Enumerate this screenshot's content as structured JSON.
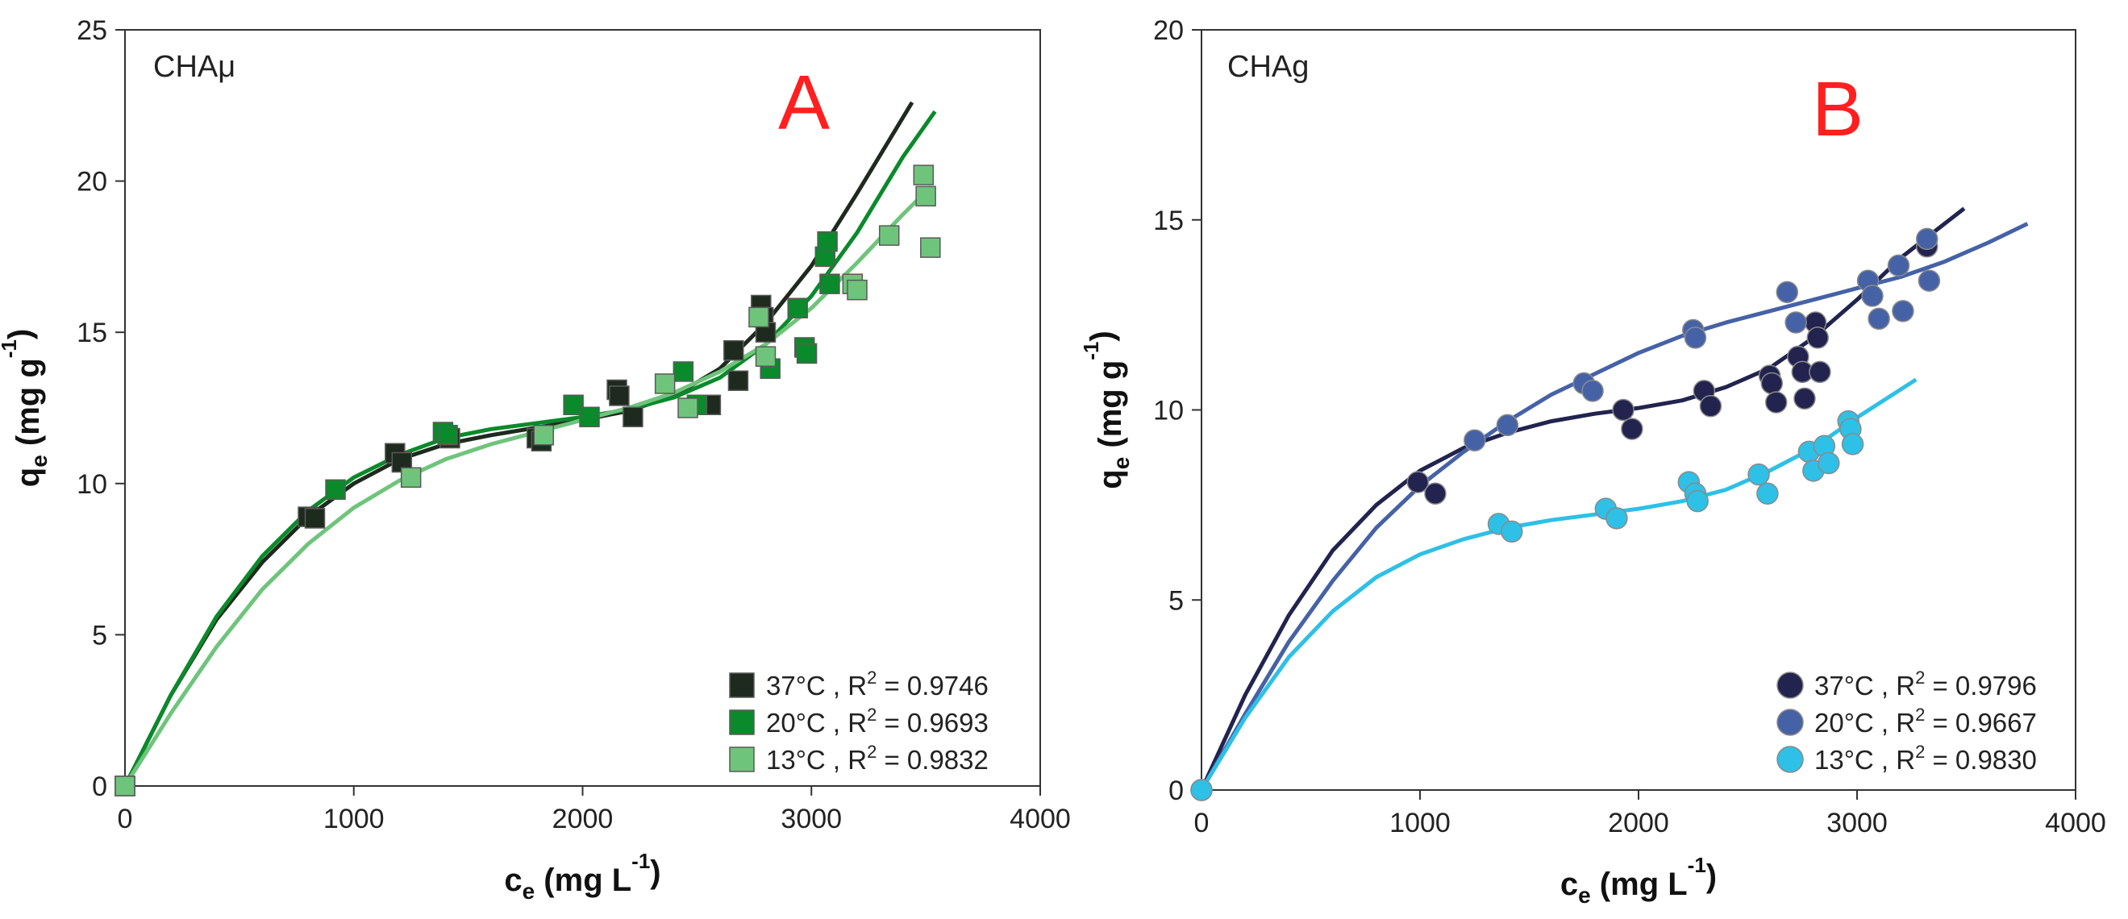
{
  "chart_data": [
    {
      "type": "scatter",
      "panel_name": "CHAμ",
      "panel_letter": "A",
      "letter_color": "#ff1f1f",
      "xlabel": {
        "main": "c",
        "sub": "e",
        "rest": " (mg L",
        "sup": "-1",
        "end": ")"
      },
      "ylabel": {
        "main": "q",
        "sub": "e",
        "rest": " (mg g",
        "sup": "-1",
        "end": ")"
      },
      "xlim": [
        0,
        4000
      ],
      "ylim": [
        0,
        25
      ],
      "xticks": [
        0,
        1000,
        2000,
        3000,
        4000
      ],
      "yticks": [
        0,
        5,
        10,
        15,
        20,
        25
      ],
      "marker": "square",
      "grid": false,
      "legend_position": "bottom-right",
      "series": [
        {
          "label": "37°C , R",
          "r2": " = 0.9746",
          "color": "#1e2a1e",
          "points": [
            [
              0,
              0
            ],
            [
              800,
              8.9
            ],
            [
              830,
              8.85
            ],
            [
              1180,
              11.0
            ],
            [
              1210,
              10.7
            ],
            [
              1420,
              11.5
            ],
            [
              1800,
              11.5
            ],
            [
              1820,
              11.4
            ],
            [
              2150,
              13.1
            ],
            [
              2160,
              12.9
            ],
            [
              2220,
              12.2
            ],
            [
              2540,
              12.6
            ],
            [
              2560,
              12.6
            ],
            [
              2660,
              14.4
            ],
            [
              2680,
              13.4
            ],
            [
              2780,
              15.9
            ],
            [
              2790,
              15.5
            ],
            [
              2800,
              15.0
            ]
          ],
          "curve": [
            [
              0,
              0
            ],
            [
              200,
              3.0
            ],
            [
              400,
              5.5
            ],
            [
              600,
              7.4
            ],
            [
              800,
              8.9
            ],
            [
              1000,
              10.0
            ],
            [
              1200,
              10.8
            ],
            [
              1400,
              11.3
            ],
            [
              1600,
              11.6
            ],
            [
              1800,
              11.85
            ],
            [
              2000,
              12.1
            ],
            [
              2200,
              12.4
            ],
            [
              2400,
              12.9
            ],
            [
              2600,
              13.8
            ],
            [
              2800,
              15.3
            ],
            [
              3000,
              17.2
            ],
            [
              3200,
              19.6
            ],
            [
              3440,
              22.6
            ]
          ]
        },
        {
          "label": "20°C , R",
          "r2": " = 0.9693",
          "color": "#0a8a2a",
          "points": [
            [
              0,
              0
            ],
            [
              920,
              9.8
            ],
            [
              1390,
              11.7
            ],
            [
              1410,
              11.6
            ],
            [
              1960,
              12.6
            ],
            [
              2030,
              12.2
            ],
            [
              2440,
              13.7
            ],
            [
              2500,
              12.6
            ],
            [
              2820,
              13.8
            ],
            [
              2940,
              15.8
            ],
            [
              2970,
              14.5
            ],
            [
              2980,
              14.3
            ],
            [
              3060,
              17.5
            ],
            [
              3070,
              18.0
            ],
            [
              3080,
              16.6
            ]
          ],
          "curve": [
            [
              0,
              0
            ],
            [
              200,
              3.0
            ],
            [
              400,
              5.6
            ],
            [
              600,
              7.6
            ],
            [
              800,
              9.1
            ],
            [
              1000,
              10.2
            ],
            [
              1200,
              10.95
            ],
            [
              1400,
              11.5
            ],
            [
              1600,
              11.8
            ],
            [
              1800,
              12.0
            ],
            [
              2000,
              12.2
            ],
            [
              2200,
              12.45
            ],
            [
              2400,
              12.85
            ],
            [
              2600,
              13.5
            ],
            [
              2800,
              14.6
            ],
            [
              3000,
              16.2
            ],
            [
              3200,
              18.3
            ],
            [
              3400,
              20.8
            ],
            [
              3540,
              22.3
            ]
          ]
        },
        {
          "label": "13°C , R",
          "r2": " = 0.9832",
          "color": "#6fc47c",
          "points": [
            [
              0,
              0
            ],
            [
              1250,
              10.2
            ],
            [
              1830,
              11.6
            ],
            [
              2360,
              13.3
            ],
            [
              2460,
              12.5
            ],
            [
              2770,
              15.5
            ],
            [
              2800,
              14.2
            ],
            [
              3180,
              16.6
            ],
            [
              3200,
              16.4
            ],
            [
              3340,
              18.2
            ],
            [
              3490,
              20.2
            ],
            [
              3500,
              19.5
            ],
            [
              3520,
              17.8
            ]
          ],
          "curve": [
            [
              0,
              0
            ],
            [
              200,
              2.4
            ],
            [
              400,
              4.6
            ],
            [
              600,
              6.5
            ],
            [
              800,
              8.0
            ],
            [
              1000,
              9.2
            ],
            [
              1200,
              10.1
            ],
            [
              1400,
              10.8
            ],
            [
              1600,
              11.3
            ],
            [
              1800,
              11.7
            ],
            [
              2000,
              12.1
            ],
            [
              2200,
              12.5
            ],
            [
              2400,
              13.0
            ],
            [
              2600,
              13.7
            ],
            [
              2800,
              14.6
            ],
            [
              3000,
              15.8
            ],
            [
              3200,
              17.3
            ],
            [
              3400,
              18.9
            ],
            [
              3520,
              19.8
            ]
          ]
        }
      ]
    },
    {
      "type": "scatter",
      "panel_name": "CHAg",
      "panel_letter": "B",
      "letter_color": "#ff1f1f",
      "xlabel": {
        "main": "c",
        "sub": "e",
        "rest": " (mg L",
        "sup": "-1",
        "end": ")"
      },
      "ylabel": {
        "main": "q",
        "sub": "e",
        "rest": " (mg g",
        "sup": "-1",
        "end": ")"
      },
      "xlim": [
        0,
        4000
      ],
      "ylim": [
        0,
        20
      ],
      "xticks": [
        0,
        1000,
        2000,
        3000,
        4000
      ],
      "yticks": [
        0,
        5,
        10,
        15,
        20
      ],
      "marker": "circle",
      "grid": false,
      "legend_position": "bottom-right",
      "series": [
        {
          "label": "37°C , R",
          "r2": " = 0.9796",
          "color": "#22234e",
          "points": [
            [
              0,
              0
            ],
            [
              990,
              8.1
            ],
            [
              1070,
              7.8
            ],
            [
              1930,
              10.0
            ],
            [
              1970,
              9.5
            ],
            [
              2300,
              10.5
            ],
            [
              2330,
              10.1
            ],
            [
              2600,
              10.9
            ],
            [
              2610,
              10.7
            ],
            [
              2630,
              10.2
            ],
            [
              2730,
              11.4
            ],
            [
              2750,
              11.0
            ],
            [
              2760,
              10.3
            ],
            [
              2810,
              12.3
            ],
            [
              2820,
              11.9
            ],
            [
              2830,
              11.0
            ],
            [
              3320,
              14.3
            ]
          ],
          "curve": [
            [
              0,
              0
            ],
            [
              200,
              2.5
            ],
            [
              400,
              4.6
            ],
            [
              600,
              6.3
            ],
            [
              800,
              7.5
            ],
            [
              1000,
              8.4
            ],
            [
              1200,
              9.0
            ],
            [
              1400,
              9.4
            ],
            [
              1600,
              9.7
            ],
            [
              1800,
              9.9
            ],
            [
              2000,
              10.05
            ],
            [
              2200,
              10.25
            ],
            [
              2400,
              10.6
            ],
            [
              2600,
              11.1
            ],
            [
              2800,
              11.9
            ],
            [
              3000,
              12.9
            ],
            [
              3200,
              14.0
            ],
            [
              3490,
              15.3
            ]
          ]
        },
        {
          "label": "20°C , R",
          "r2": " = 0.9667",
          "color": "#4662a6",
          "points": [
            [
              0,
              0
            ],
            [
              1250,
              9.2
            ],
            [
              1400,
              9.6
            ],
            [
              1750,
              10.7
            ],
            [
              1790,
              10.5
            ],
            [
              2250,
              12.1
            ],
            [
              2260,
              11.9
            ],
            [
              2680,
              13.1
            ],
            [
              2720,
              12.3
            ],
            [
              3050,
              13.4
            ],
            [
              3070,
              13.0
            ],
            [
              3100,
              12.4
            ],
            [
              3190,
              13.8
            ],
            [
              3210,
              12.6
            ],
            [
              3320,
              14.5
            ],
            [
              3330,
              13.4
            ]
          ],
          "curve": [
            [
              0,
              0
            ],
            [
              200,
              2.0
            ],
            [
              400,
              3.9
            ],
            [
              600,
              5.5
            ],
            [
              800,
              6.9
            ],
            [
              1000,
              8.0
            ],
            [
              1200,
              8.9
            ],
            [
              1400,
              9.7
            ],
            [
              1600,
              10.4
            ],
            [
              1800,
              10.95
            ],
            [
              2000,
              11.5
            ],
            [
              2200,
              11.95
            ],
            [
              2400,
              12.3
            ],
            [
              2600,
              12.6
            ],
            [
              2800,
              12.9
            ],
            [
              3000,
              13.2
            ],
            [
              3200,
              13.5
            ],
            [
              3400,
              13.9
            ],
            [
              3600,
              14.4
            ],
            [
              3780,
              14.9
            ]
          ]
        },
        {
          "label": "13°C , R",
          "r2": " = 0.9830",
          "color": "#2ec0e6",
          "points": [
            [
              0,
              0
            ],
            [
              1360,
              7.0
            ],
            [
              1420,
              6.8
            ],
            [
              1850,
              7.4
            ],
            [
              1900,
              7.15
            ],
            [
              2230,
              8.1
            ],
            [
              2260,
              7.8
            ],
            [
              2270,
              7.6
            ],
            [
              2550,
              8.3
            ],
            [
              2590,
              7.8
            ],
            [
              2780,
              8.9
            ],
            [
              2800,
              8.4
            ],
            [
              2850,
              9.05
            ],
            [
              2870,
              8.6
            ],
            [
              2960,
              9.7
            ],
            [
              2970,
              9.5
            ],
            [
              2980,
              9.1
            ]
          ],
          "curve": [
            [
              0,
              0
            ],
            [
              200,
              1.9
            ],
            [
              400,
              3.5
            ],
            [
              600,
              4.7
            ],
            [
              800,
              5.6
            ],
            [
              1000,
              6.2
            ],
            [
              1200,
              6.6
            ],
            [
              1400,
              6.9
            ],
            [
              1600,
              7.1
            ],
            [
              1800,
              7.25
            ],
            [
              2000,
              7.4
            ],
            [
              2200,
              7.6
            ],
            [
              2400,
              7.9
            ],
            [
              2600,
              8.4
            ],
            [
              2800,
              9.0
            ],
            [
              3000,
              9.8
            ],
            [
              3270,
              10.8
            ]
          ]
        }
      ]
    }
  ]
}
